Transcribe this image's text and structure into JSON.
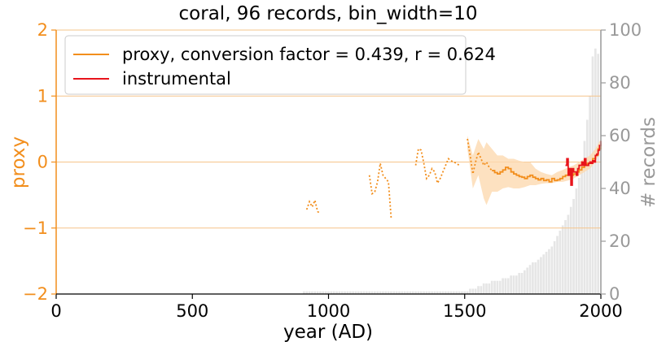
{
  "chart_data": {
    "type": "line",
    "title": "coral, 96 records, bin_width=10",
    "xlabel": "year (AD)",
    "ylabel": "proxy",
    "y2label": "# records",
    "xlim": [
      0,
      2000
    ],
    "ylim": [
      -2,
      2
    ],
    "y2lim": [
      0,
      100
    ],
    "xticks": [
      "0",
      "500",
      "1000",
      "1500",
      "2000"
    ],
    "yticks": [
      "−2",
      "−1",
      "0",
      "1",
      "2"
    ],
    "y2ticks": [
      "0",
      "20",
      "40",
      "60",
      "80",
      "100"
    ],
    "grid": "horizontal",
    "legend_position": "top-left",
    "colors": {
      "proxy": "#f28e1c",
      "instrumental": "#e8141b",
      "uncertainty": "#fdd9b0",
      "records_bars": "#e6e6e6",
      "records_axis": "#999999"
    },
    "series": [
      {
        "name": "proxy, conversion factor = 0.439, r = 0.624",
        "style": "solid",
        "x": [
          1600,
          1610,
          1620,
          1630,
          1640,
          1650,
          1660,
          1670,
          1680,
          1690,
          1700,
          1710,
          1720,
          1730,
          1740,
          1750,
          1760,
          1770,
          1780,
          1790,
          1800,
          1810,
          1820,
          1830,
          1840,
          1850,
          1860,
          1870,
          1880,
          1890,
          1900,
          1910,
          1920,
          1930,
          1940,
          1950,
          1960,
          1970,
          1980,
          1990,
          2000
        ],
        "y": [
          -0.13,
          -0.16,
          -0.18,
          -0.15,
          -0.12,
          -0.08,
          -0.1,
          -0.15,
          -0.18,
          -0.2,
          -0.22,
          -0.23,
          -0.25,
          -0.22,
          -0.2,
          -0.23,
          -0.25,
          -0.27,
          -0.25,
          -0.28,
          -0.27,
          -0.3,
          -0.25,
          -0.28,
          -0.27,
          -0.25,
          -0.22,
          -0.2,
          -0.15,
          -0.2,
          -0.18,
          -0.15,
          -0.12,
          -0.08,
          -0.05,
          -0.02,
          0.0,
          0.05,
          0.1,
          0.2,
          0.28
        ]
      },
      {
        "name": "",
        "style": "dotted",
        "segments": [
          {
            "x": [
              920,
              930,
              940,
              950,
              960,
              970
            ],
            "y": [
              -0.72,
              -0.6,
              -0.68,
              -0.58,
              -0.75,
              -0.78
            ]
          },
          {
            "x": [
              1150,
              1160,
              1170,
              1180,
              1190,
              1200,
              1210,
              1220,
              1230
            ],
            "y": [
              -0.2,
              -0.48,
              -0.45,
              -0.3,
              -0.02,
              -0.2,
              -0.25,
              -0.3,
              -0.85
            ]
          },
          {
            "x": [
              1320,
              1330,
              1340,
              1350,
              1360,
              1370,
              1380,
              1390,
              1400,
              1410,
              1420,
              1430,
              1440,
              1450,
              1460,
              1470,
              1480
            ],
            "y": [
              -0.05,
              0.2,
              0.18,
              -0.02,
              -0.25,
              -0.2,
              -0.1,
              -0.15,
              -0.32,
              -0.25,
              -0.15,
              -0.05,
              0.05,
              0.02,
              0.0,
              -0.02,
              -0.05
            ]
          },
          {
            "x": [
              1510,
              1520,
              1530,
              1540,
              1550,
              1560,
              1570,
              1580,
              1590,
              1600
            ],
            "y": [
              0.35,
              0.1,
              -0.18,
              0.0,
              0.15,
              0.05,
              -0.05,
              0.0,
              -0.08,
              -0.13
            ]
          }
        ]
      },
      {
        "name": "instrumental",
        "style": "solid",
        "x": [
          1870,
          1875,
          1880,
          1885,
          1890,
          1895,
          1900,
          1905,
          1910,
          1915,
          1920,
          1925,
          1930,
          1935,
          1940,
          1945,
          1950,
          1955,
          1960,
          1965,
          1970,
          1975,
          1980,
          1985,
          1990,
          1995,
          2000
        ],
        "y": [
          -0.05,
          0.05,
          -0.2,
          -0.1,
          -0.35,
          -0.1,
          -0.15,
          -0.15,
          -0.2,
          -0.1,
          -0.05,
          -0.05,
          0.0,
          -0.05,
          0.05,
          -0.05,
          -0.05,
          -0.02,
          0.0,
          -0.02,
          0.02,
          0.0,
          0.1,
          0.12,
          0.18,
          0.25,
          0.32
        ]
      }
    ],
    "uncertainty_band": {
      "x": [
        1510,
        1530,
        1550,
        1570,
        1580,
        1590,
        1600,
        1620,
        1640,
        1660,
        1680,
        1700,
        1720,
        1740,
        1760,
        1780,
        1800,
        1820,
        1840,
        1860,
        1880,
        1900,
        1920,
        1940,
        1960,
        1980,
        2000
      ],
      "lower": [
        0.2,
        -0.4,
        -0.2,
        -0.55,
        -0.65,
        -0.55,
        -0.45,
        -0.45,
        -0.4,
        -0.38,
        -0.4,
        -0.4,
        -0.38,
        -0.35,
        -0.35,
        -0.33,
        -0.32,
        -0.32,
        -0.3,
        -0.3,
        -0.28,
        -0.25,
        -0.2,
        -0.15,
        -0.1,
        0.0,
        0.2
      ],
      "upper": [
        0.4,
        0.1,
        0.35,
        0.2,
        0.3,
        0.25,
        0.2,
        0.1,
        0.1,
        0.05,
        0.05,
        0.02,
        0.0,
        0.0,
        -0.1,
        -0.15,
        -0.18,
        -0.2,
        -0.15,
        -0.12,
        -0.08,
        -0.05,
        0.0,
        0.05,
        0.1,
        0.2,
        0.35
      ]
    },
    "records": {
      "bin_width": 10,
      "x": [
        910,
        920,
        930,
        940,
        950,
        960,
        970,
        980,
        990,
        1000,
        1010,
        1020,
        1030,
        1040,
        1050,
        1060,
        1070,
        1080,
        1090,
        1100,
        1110,
        1120,
        1130,
        1140,
        1150,
        1160,
        1170,
        1180,
        1190,
        1200,
        1210,
        1220,
        1230,
        1240,
        1250,
        1260,
        1270,
        1280,
        1290,
        1300,
        1310,
        1320,
        1330,
        1340,
        1350,
        1360,
        1370,
        1380,
        1390,
        1400,
        1410,
        1420,
        1430,
        1440,
        1450,
        1460,
        1470,
        1480,
        1490,
        1500,
        1510,
        1520,
        1530,
        1540,
        1550,
        1560,
        1570,
        1580,
        1590,
        1600,
        1610,
        1620,
        1630,
        1640,
        1650,
        1660,
        1670,
        1680,
        1690,
        1700,
        1710,
        1720,
        1730,
        1740,
        1750,
        1760,
        1770,
        1780,
        1790,
        1800,
        1810,
        1820,
        1830,
        1840,
        1850,
        1860,
        1870,
        1880,
        1890,
        1900,
        1910,
        1920,
        1930,
        1940,
        1950,
        1960,
        1970,
        1980,
        1990
      ],
      "counts": [
        1,
        1,
        1,
        1,
        1,
        1,
        1,
        1,
        1,
        1,
        1,
        1,
        1,
        1,
        1,
        1,
        1,
        1,
        1,
        1,
        1,
        1,
        1,
        1,
        1,
        1,
        1,
        1,
        1,
        1,
        1,
        1,
        1,
        1,
        1,
        1,
        1,
        1,
        1,
        1,
        1,
        1,
        1,
        1,
        1,
        1,
        1,
        1,
        1,
        1,
        1,
        1,
        1,
        1,
        1,
        1,
        1,
        1,
        1,
        1,
        1,
        2,
        2,
        2,
        3,
        3,
        4,
        4,
        4,
        5,
        5,
        5,
        5,
        6,
        6,
        6,
        7,
        7,
        7,
        8,
        8,
        9,
        10,
        11,
        12,
        12,
        13,
        14,
        15,
        16,
        17,
        18,
        20,
        22,
        24,
        26,
        28,
        30,
        33,
        36,
        40,
        44,
        50,
        58,
        66,
        75,
        90,
        93,
        91
      ]
    }
  },
  "legend": {
    "proxy_label": "proxy, conversion factor = 0.439, r = 0.624",
    "instrumental_label": "instrumental"
  }
}
